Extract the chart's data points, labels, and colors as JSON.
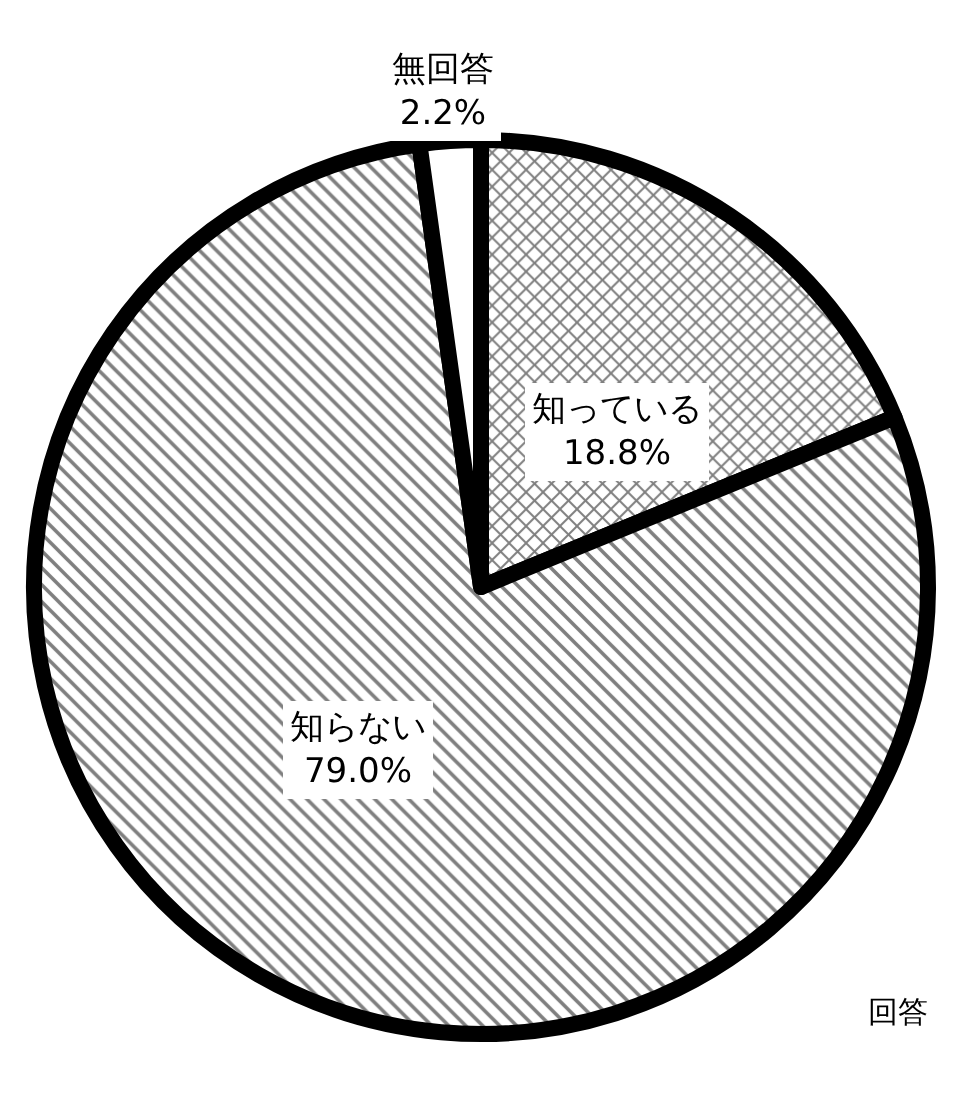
{
  "chart_data": {
    "type": "pie",
    "categories": [
      "知っている",
      "知らない",
      "無回答"
    ],
    "values": [
      18.8,
      79.0,
      2.2
    ],
    "colors": [
      "#000000",
      "#000000",
      "#ffffff"
    ],
    "value_labels": [
      "18.8%",
      "79.0%",
      "2.2%"
    ],
    "legend": false,
    "annotations": [
      "回答"
    ]
  }
}
